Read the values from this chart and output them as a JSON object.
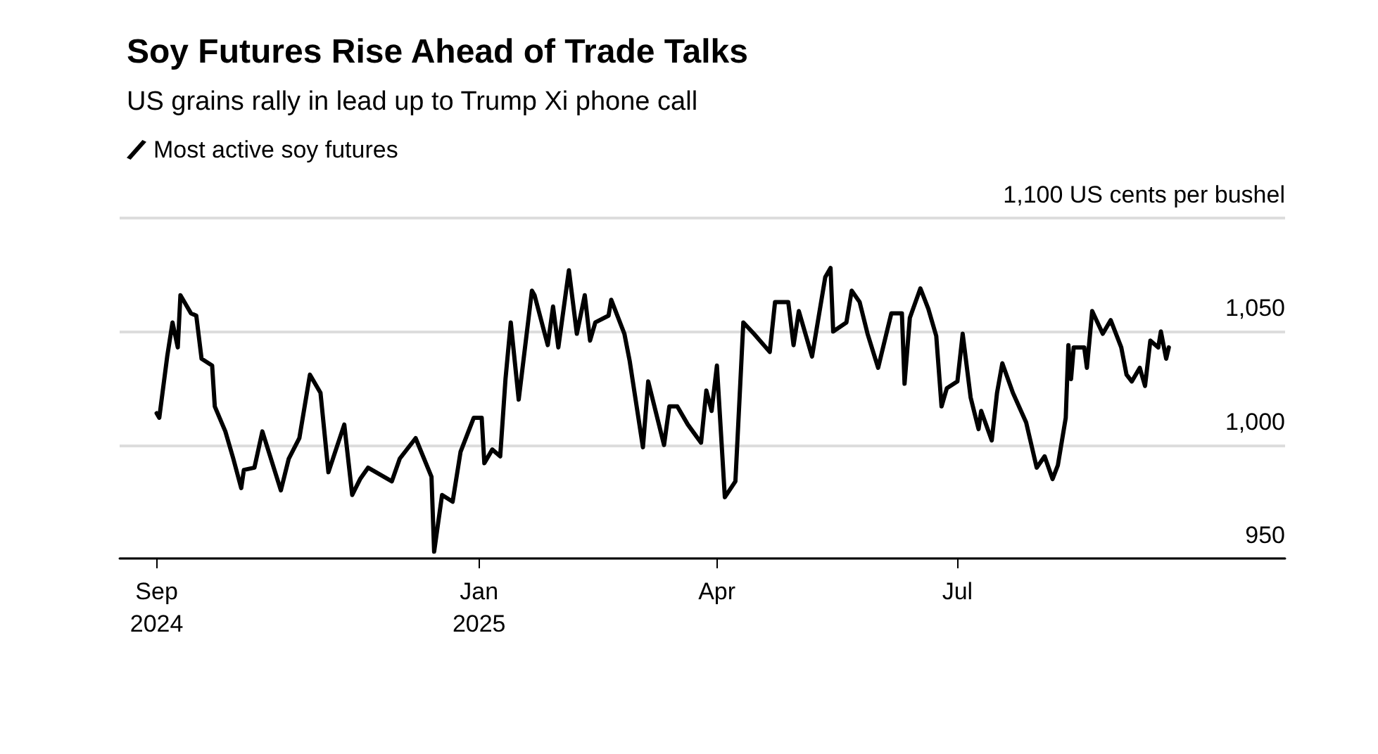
{
  "chart_data": {
    "type": "line",
    "title": "Soy Futures Rise Ahead of Trade Talks",
    "subtitle": "US grains rally in lead up to Trump Xi phone call",
    "x": [
      "2024-09-01",
      "2024-09-02",
      "2024-09-05",
      "2024-09-07",
      "2024-09-09",
      "2024-09-10",
      "2024-09-14",
      "2024-09-16",
      "2024-09-18",
      "2024-09-22",
      "2024-09-23",
      "2024-09-27",
      "2024-09-30",
      "2024-10-03",
      "2024-10-04",
      "2024-10-08",
      "2024-10-11",
      "2024-10-18",
      "2024-10-21",
      "2024-10-25",
      "2024-10-29",
      "2024-11-02",
      "2024-11-05",
      "2024-11-11",
      "2024-11-14",
      "2024-11-17",
      "2024-11-20",
      "2024-11-29",
      "2024-12-02",
      "2024-12-08",
      "2024-12-14",
      "2024-12-15",
      "2024-12-18",
      "2024-12-22",
      "2024-12-25",
      "2024-12-30",
      "2025-01-02",
      "2025-01-03",
      "2025-01-06",
      "2025-01-09",
      "2025-01-11",
      "2025-01-13",
      "2025-01-16",
      "2025-01-21",
      "2025-01-22",
      "2025-01-27",
      "2025-01-29",
      "2025-01-31",
      "2025-02-04",
      "2025-02-07",
      "2025-02-10",
      "2025-02-12",
      "2025-02-14",
      "2025-02-19",
      "2025-02-20",
      "2025-02-25",
      "2025-02-27",
      "2025-03-04",
      "2025-03-06",
      "2025-03-12",
      "2025-03-14",
      "2025-03-17",
      "2025-03-21",
      "2025-03-26",
      "2025-03-28",
      "2025-03-30",
      "2025-04-01",
      "2025-04-04",
      "2025-04-08",
      "2025-04-11",
      "2025-04-15",
      "2025-04-21",
      "2025-04-23",
      "2025-04-28",
      "2025-04-30",
      "2025-05-02",
      "2025-05-07",
      "2025-05-12",
      "2025-05-14",
      "2025-05-15",
      "2025-05-20",
      "2025-05-22",
      "2025-05-25",
      "2025-05-28",
      "2025-06-01",
      "2025-06-06",
      "2025-06-10",
      "2025-06-11",
      "2025-06-13",
      "2025-06-17",
      "2025-06-20",
      "2025-06-23",
      "2025-06-25",
      "2025-06-27",
      "2025-07-01",
      "2025-07-03",
      "2025-07-06",
      "2025-07-09",
      "2025-07-10",
      "2025-07-14",
      "2025-07-16",
      "2025-07-18",
      "2025-07-22",
      "2025-07-27",
      "2025-07-31",
      "2025-08-03",
      "2025-08-06",
      "2025-08-08",
      "2025-08-11",
      "2025-08-12",
      "2025-08-13",
      "2025-08-14",
      "2025-08-18",
      "2025-08-19",
      "2025-08-21",
      "2025-08-25",
      "2025-08-28",
      "2025-09-01",
      "2025-09-03",
      "2025-09-05",
      "2025-09-08",
      "2025-09-10",
      "2025-09-12",
      "2025-09-15",
      "2025-09-16",
      "2025-09-18",
      "2025-09-19"
    ],
    "series": [
      {
        "name": "Most active soy futures",
        "color": "#000000",
        "values": [
          1014,
          1012,
          1039,
          1054,
          1043,
          1066,
          1058,
          1057,
          1038,
          1035,
          1017,
          1006,
          994,
          981,
          989,
          990,
          1006,
          980,
          994,
          1003,
          1031,
          1023,
          988,
          1009,
          978,
          985,
          990,
          984,
          994,
          1003,
          986,
          953,
          978,
          975,
          997,
          1012,
          1012,
          992,
          998,
          995,
          1029,
          1054,
          1020,
          1068,
          1066,
          1044,
          1061,
          1043,
          1077,
          1049,
          1066,
          1046,
          1054,
          1057,
          1064,
          1049,
          1037,
          999,
          1028,
          1000,
          1017,
          1017,
          1009,
          1001,
          1024,
          1015,
          1035,
          977,
          984,
          1054,
          1049,
          1041,
          1063,
          1063,
          1044,
          1059,
          1039,
          1074,
          1078,
          1050,
          1054,
          1068,
          1063,
          1049,
          1034,
          1058,
          1058,
          1027,
          1056,
          1069,
          1060,
          1048,
          1017,
          1025,
          1028,
          1049,
          1021,
          1007,
          1015,
          1002,
          1023,
          1036,
          1023,
          1010,
          990,
          995,
          985,
          991,
          1012,
          1044,
          1029,
          1043,
          1043,
          1034,
          1059,
          1049,
          1055,
          1043,
          1031,
          1028,
          1034,
          1026,
          1046,
          1043,
          1050,
          1038,
          1043
        ]
      }
    ],
    "xlim": [
      "2024-08-18",
      "2025-11-02"
    ],
    "xticks": [
      {
        "value": "2024-09-01",
        "label": "Sep\n2024"
      },
      {
        "value": "2025-01-01",
        "label": "Jan\n2025"
      },
      {
        "value": "2025-04-01",
        "label": "Apr"
      },
      {
        "value": "2025-07-01",
        "label": "Jul"
      }
    ],
    "ylim": [
      950,
      1100
    ],
    "yticks": [
      {
        "value": 950,
        "label": "950"
      },
      {
        "value": 1000,
        "label": "1,000"
      },
      {
        "value": 1050,
        "label": "1,050"
      },
      {
        "value": 1100,
        "label": "1,100 US cents per bushel"
      }
    ],
    "grid": "y",
    "legend": "top left",
    "marker": "none",
    "line_style": "solid"
  }
}
